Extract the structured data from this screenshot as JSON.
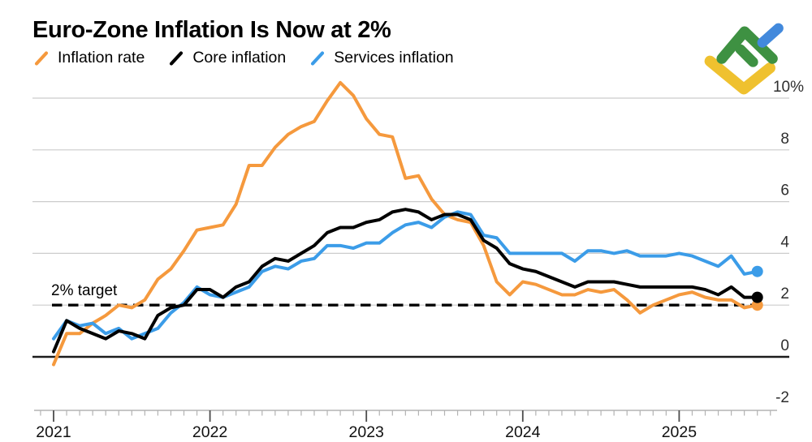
{
  "header": {
    "title": "Euro-Zone Inflation Is Now at 2%"
  },
  "legend": {
    "items": [
      {
        "label": "Inflation rate",
        "color": "#F5993D"
      },
      {
        "label": "Core inflation",
        "color": "#000000"
      },
      {
        "label": "Services inflation",
        "color": "#3B9CE8"
      }
    ]
  },
  "logo": {
    "name": "LiteFinance",
    "colors": {
      "yellow": "#EFC12F",
      "green": "#3E9142",
      "blue": "#4289DC"
    }
  },
  "chart_data": {
    "type": "line",
    "title": "Euro-Zone Inflation Is Now at 2%",
    "x_axis": {
      "unit": "month",
      "start": "2020-12",
      "end": "2025-06",
      "points_count": 55,
      "year_labels": [
        "2021",
        "2022",
        "2023",
        "2024",
        "2025"
      ]
    },
    "y_axis": {
      "unit": "percent",
      "range": [
        -2.1,
        10.8
      ],
      "ticks": [
        {
          "label": "10%",
          "value": 10
        },
        {
          "label": "8",
          "value": 8
        },
        {
          "label": "6",
          "value": 6
        },
        {
          "label": "4",
          "value": 4
        },
        {
          "label": "2",
          "value": 2
        },
        {
          "label": "0",
          "value": 0
        },
        {
          "label": "-2",
          "value": -2
        }
      ]
    },
    "target_value": 2,
    "target_label": "2% target",
    "style": {
      "grid_color": "#cccccc",
      "zero_line_color": "#1c1c1c",
      "axis_color": "#b3b3b3",
      "major_tick_color": "#4d4d4d",
      "label_color": "#2e2e2e"
    },
    "series": [
      {
        "id": "inflation-rate",
        "name": "Inflation rate",
        "color": "#F5993D",
        "values": [
          -0.3,
          0.9,
          0.9,
          1.3,
          1.6,
          2.0,
          1.9,
          2.2,
          3.0,
          3.4,
          4.1,
          4.9,
          5.0,
          5.1,
          5.9,
          7.4,
          7.4,
          8.1,
          8.6,
          8.9,
          9.1,
          9.9,
          10.6,
          10.1,
          9.2,
          8.6,
          8.5,
          6.9,
          7.0,
          6.1,
          5.5,
          5.3,
          5.2,
          4.3,
          2.9,
          2.4,
          2.9,
          2.8,
          2.6,
          2.4,
          2.4,
          2.6,
          2.5,
          2.6,
          2.2,
          1.7,
          2.0,
          2.2,
          2.4,
          2.5,
          2.3,
          2.2,
          2.2,
          1.9,
          2.0
        ]
      },
      {
        "id": "core-inflation",
        "name": "Core inflation",
        "color": "#000000",
        "values": [
          0.2,
          1.4,
          1.1,
          0.9,
          0.7,
          1.0,
          0.9,
          0.7,
          1.6,
          1.9,
          2.0,
          2.6,
          2.6,
          2.3,
          2.7,
          2.9,
          3.5,
          3.8,
          3.7,
          4.0,
          4.3,
          4.8,
          5.0,
          5.0,
          5.2,
          5.3,
          5.6,
          5.7,
          5.6,
          5.3,
          5.5,
          5.5,
          5.3,
          4.5,
          4.2,
          3.6,
          3.4,
          3.3,
          3.1,
          2.9,
          2.7,
          2.9,
          2.9,
          2.9,
          2.8,
          2.7,
          2.7,
          2.7,
          2.7,
          2.7,
          2.6,
          2.4,
          2.7,
          2.3,
          2.3
        ]
      },
      {
        "id": "services-inflation",
        "name": "Services inflation",
        "color": "#3B9CE8",
        "values": [
          0.7,
          1.4,
          1.2,
          1.3,
          0.9,
          1.1,
          0.7,
          0.9,
          1.1,
          1.7,
          2.1,
          2.7,
          2.4,
          2.3,
          2.5,
          2.7,
          3.3,
          3.5,
          3.4,
          3.7,
          3.8,
          4.3,
          4.3,
          4.2,
          4.4,
          4.4,
          4.8,
          5.1,
          5.2,
          5.0,
          5.4,
          5.6,
          5.5,
          4.7,
          4.6,
          4.0,
          4.0,
          4.0,
          4.0,
          4.0,
          3.7,
          4.1,
          4.1,
          4.0,
          4.1,
          3.9,
          3.9,
          3.9,
          4.0,
          3.9,
          3.7,
          3.5,
          3.9,
          3.2,
          3.3
        ]
      }
    ],
    "legend_position": "top-left",
    "grid": true
  }
}
